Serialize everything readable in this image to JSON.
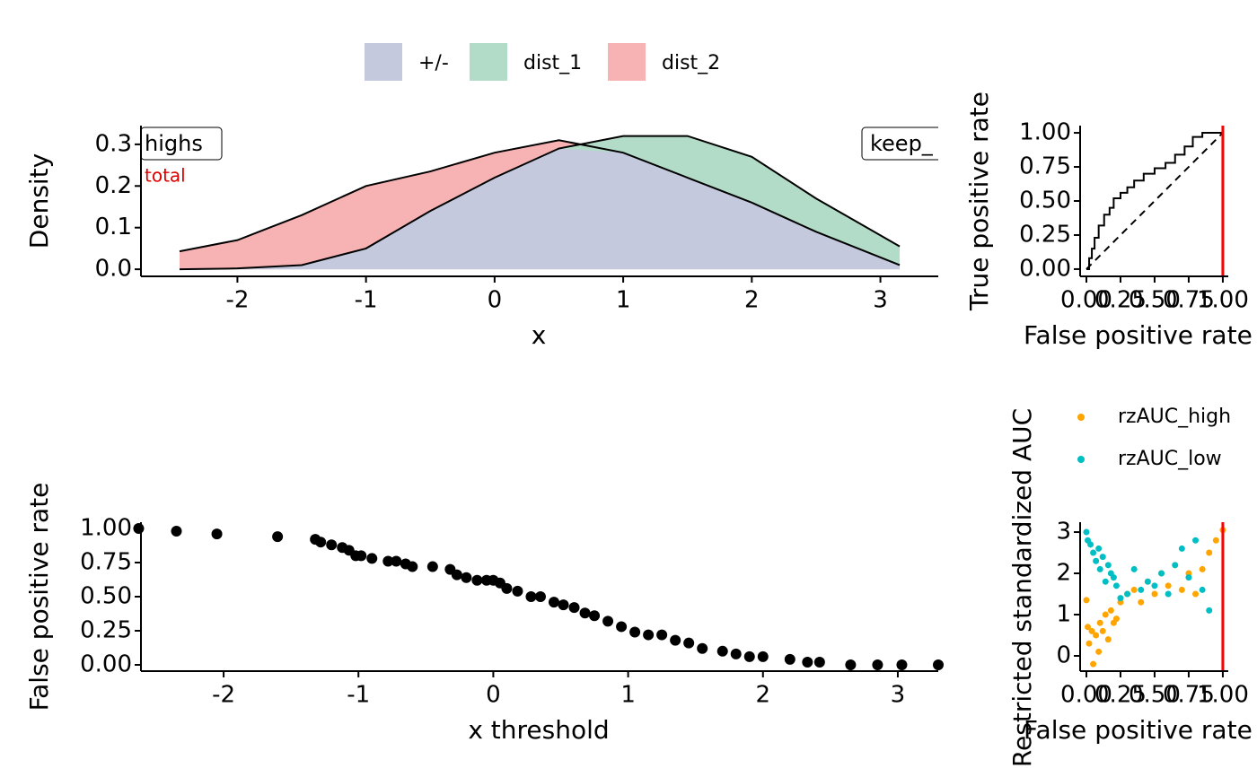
{
  "chart_data": [
    {
      "type": "area",
      "x_label": "x",
      "y_label": "Density",
      "x": [
        -2.45,
        -2,
        -1.5,
        -1,
        -0.5,
        0,
        0.5,
        1,
        1.5,
        2,
        2.5,
        3.15
      ],
      "series": [
        {
          "name": "+/-",
          "color": "#c4c9de",
          "values": [
            0.0,
            0.002,
            0.01,
            0.05,
            0.14,
            0.22,
            0.29,
            0.28,
            0.22,
            0.16,
            0.09,
            0.01
          ]
        },
        {
          "name": "dist_1",
          "color": "#b2dcc8",
          "values": [
            0.0,
            0.002,
            0.01,
            0.05,
            0.14,
            0.22,
            0.29,
            0.32,
            0.32,
            0.27,
            0.17,
            0.055
          ]
        },
        {
          "name": "dist_2",
          "color": "#f7b3b3",
          "values": [
            0.043,
            0.07,
            0.13,
            0.2,
            0.235,
            0.28,
            0.31,
            0.28,
            0.22,
            0.16,
            0.09,
            0.01
          ]
        }
      ],
      "annotations": [
        "highs",
        "keep_",
        "total"
      ],
      "xlim": [
        -2.75,
        3.45
      ],
      "xticks": [
        -2,
        -1,
        0,
        1,
        2,
        3
      ],
      "ylim": [
        -0.017,
        0.345
      ],
      "yticks": [
        {
          "value": 0,
          "label": "0.0"
        },
        0.1,
        0.2,
        0.3
      ]
    },
    {
      "type": "line",
      "x_label": "False positive rate",
      "y_label": "True positive rate",
      "series": [
        {
          "color": "#000000",
          "x": [
            0,
            0.02,
            0.02,
            0.04,
            0.04,
            0.06,
            0.06,
            0.09,
            0.09,
            0.13,
            0.13,
            0.17,
            0.17,
            0.2,
            0.2,
            0.25,
            0.25,
            0.3,
            0.3,
            0.35,
            0.35,
            0.42,
            0.42,
            0.5,
            0.5,
            0.58,
            0.58,
            0.65,
            0.65,
            0.72,
            0.72,
            0.78,
            0.78,
            0.85,
            0.85,
            1
          ],
          "values": [
            0,
            0,
            0.08,
            0.08,
            0.15,
            0.15,
            0.23,
            0.23,
            0.32,
            0.32,
            0.4,
            0.4,
            0.45,
            0.45,
            0.52,
            0.52,
            0.56,
            0.56,
            0.6,
            0.6,
            0.65,
            0.65,
            0.7,
            0.7,
            0.74,
            0.74,
            0.78,
            0.78,
            0.84,
            0.84,
            0.9,
            0.9,
            0.97,
            0.97,
            1,
            1
          ]
        }
      ],
      "vline": 1,
      "vline_color": "#ff0000",
      "xlim": [
        -0.046,
        1.04
      ],
      "xticks": [
        {
          "value": 0,
          "label": "0.00"
        },
        0.25,
        {
          "value": 0.5,
          "label": "0.50"
        },
        0.75,
        {
          "value": 1,
          "label": "1.00"
        }
      ],
      "ylim": [
        -0.053,
        1.053
      ],
      "yticks": [
        {
          "value": 0,
          "label": "0.00"
        },
        0.25,
        {
          "value": 0.5,
          "label": "0.50"
        },
        0.75,
        {
          "value": 1,
          "label": "1.00"
        }
      ]
    },
    {
      "type": "scatter",
      "x_label": "x threshold",
      "y_label": "False positive rate",
      "series": [
        {
          "color": "#000000",
          "x": [
            -2.63,
            -2.35,
            -2.05,
            -1.6,
            -1.32,
            -1.28,
            -1.2,
            -1.12,
            -1.07,
            -1.02,
            -0.98,
            -0.9,
            -0.78,
            -0.72,
            -0.65,
            -0.6,
            -0.45,
            -0.32,
            -0.27,
            -0.2,
            -0.12,
            -0.05,
            0.0,
            0.05,
            0.1,
            0.18,
            0.28,
            0.35,
            0.45,
            0.52,
            0.6,
            0.68,
            0.75,
            0.85,
            0.95,
            1.05,
            1.15,
            1.25,
            1.35,
            1.45,
            1.55,
            1.7,
            1.8,
            1.9,
            2.0,
            2.2,
            2.33,
            2.42,
            2.65,
            2.85,
            3.03,
            3.3
          ],
          "values": [
            1.0,
            0.98,
            0.96,
            0.94,
            0.92,
            0.9,
            0.88,
            0.86,
            0.84,
            0.8,
            0.8,
            0.78,
            0.76,
            0.76,
            0.74,
            0.72,
            0.72,
            0.7,
            0.66,
            0.64,
            0.62,
            0.62,
            0.62,
            0.6,
            0.56,
            0.54,
            0.5,
            0.5,
            0.46,
            0.44,
            0.42,
            0.38,
            0.36,
            0.32,
            0.28,
            0.24,
            0.22,
            0.22,
            0.18,
            0.16,
            0.12,
            0.1,
            0.08,
            0.06,
            0.06,
            0.04,
            0.02,
            0.02,
            0.0,
            0.0,
            0.0,
            0.0
          ]
        }
      ],
      "xlim": [
        -2.613,
        3.3
      ],
      "xticks": [
        -2,
        -1,
        0,
        1,
        2,
        3
      ],
      "ylim": [
        -0.046,
        1.046
      ],
      "yticks": [
        {
          "value": 0,
          "label": "0.00"
        },
        0.25,
        {
          "value": 0.5,
          "label": "0.50"
        },
        0.75,
        {
          "value": 1,
          "label": "1.00"
        }
      ]
    },
    {
      "type": "scatter",
      "x_label": "False positive rate",
      "y_label": "Restricted standardized AUC",
      "series": [
        {
          "name": "rzAUC_high",
          "color": "#ffa500",
          "x": [
            0.0,
            0.01,
            0.02,
            0.04,
            0.05,
            0.07,
            0.09,
            0.1,
            0.12,
            0.14,
            0.16,
            0.18,
            0.2,
            0.22,
            0.25,
            0.3,
            0.35,
            0.4,
            0.45,
            0.5,
            0.55,
            0.6,
            0.65,
            0.7,
            0.75,
            0.8,
            0.85,
            0.9,
            0.95,
            1.0
          ],
          "values": [
            1.35,
            0.7,
            0.3,
            0.6,
            -0.2,
            0.5,
            0.1,
            0.8,
            0.6,
            1.0,
            0.4,
            1.1,
            0.8,
            0.9,
            1.3,
            1.5,
            1.6,
            1.3,
            1.8,
            1.5,
            2.0,
            1.7,
            2.2,
            1.6,
            2.0,
            1.5,
            2.1,
            2.5,
            2.8,
            3.05
          ]
        },
        {
          "name": "rzAUC_low",
          "color": "#00bfc4",
          "x": [
            0.0,
            0.01,
            0.03,
            0.05,
            0.07,
            0.09,
            0.1,
            0.12,
            0.14,
            0.16,
            0.18,
            0.2,
            0.22,
            0.25,
            0.3,
            0.35,
            0.4,
            0.45,
            0.5,
            0.55,
            0.6,
            0.65,
            0.7,
            0.75,
            0.8,
            0.85,
            0.9
          ],
          "values": [
            3.0,
            2.8,
            2.7,
            2.5,
            2.3,
            2.6,
            2.1,
            2.4,
            1.8,
            2.2,
            2.0,
            1.9,
            1.7,
            1.4,
            1.5,
            2.1,
            1.6,
            1.8,
            1.7,
            2.0,
            1.5,
            2.2,
            2.6,
            1.9,
            2.8,
            1.6,
            1.1
          ]
        }
      ],
      "vline": 1,
      "vline_color": "#ff0000",
      "xlim": [
        -0.046,
        1.04
      ],
      "xticks": [
        {
          "value": 0,
          "label": "0.00"
        },
        0.25,
        {
          "value": 0.5,
          "label": "0.50"
        },
        0.75,
        {
          "value": 1,
          "label": "1.00"
        }
      ],
      "ylim": [
        -0.37,
        3.24
      ],
      "yticks": [
        0,
        1,
        2,
        3
      ]
    }
  ]
}
